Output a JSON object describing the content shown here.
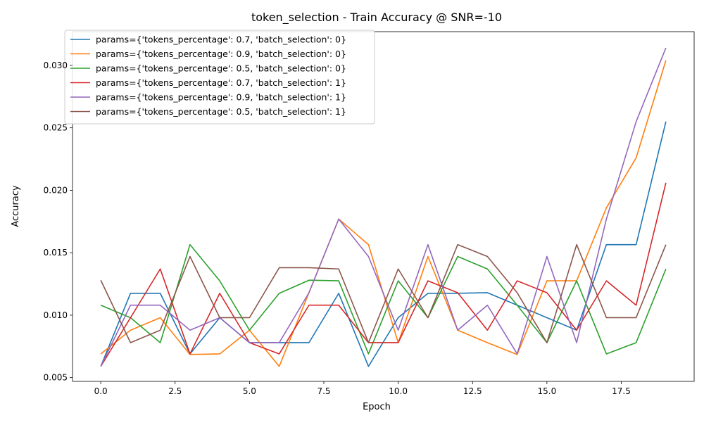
{
  "chart_data": {
    "type": "line",
    "title": "token_selection - Train Accuracy @ SNR=-10",
    "xlabel": "Epoch",
    "ylabel": "Accuracy",
    "xlim": [
      -0.95,
      19.95
    ],
    "ylim": [
      0.0047,
      0.0327
    ],
    "xticks": [
      0.0,
      2.5,
      5.0,
      7.5,
      10.0,
      12.5,
      15.0,
      17.5
    ],
    "xtick_labels": [
      "0.0",
      "2.5",
      "5.0",
      "7.5",
      "10.0",
      "12.5",
      "15.0",
      "17.5"
    ],
    "yticks": [
      0.005,
      0.01,
      0.015,
      0.02,
      0.025,
      0.03
    ],
    "ytick_labels": [
      "0.005",
      "0.010",
      "0.015",
      "0.020",
      "0.025",
      "0.030"
    ],
    "grid": false,
    "legend_position": "top-left",
    "x": [
      0,
      1,
      2,
      3,
      4,
      5,
      6,
      7,
      8,
      9,
      10,
      11,
      12,
      13,
      14,
      15,
      16,
      17,
      18,
      19
    ],
    "series": [
      {
        "name": "params={'tokens_percentage': 0.7, 'batch_selection': 0}",
        "color": "#1f77b4",
        "values": [
          0.0059,
          0.01175,
          0.01175,
          0.0069,
          0.0098,
          0.0078,
          0.0078,
          0.0078,
          0.01175,
          0.0059,
          0.0098,
          0.01175,
          0.01175,
          0.0118,
          0.0108,
          0.0098,
          0.0088,
          0.01565,
          0.01565,
          0.0255
        ]
      },
      {
        "name": "params={'tokens_percentage': 0.9, 'batch_selection': 0}",
        "color": "#ff7f0e",
        "values": [
          0.0069,
          0.0088,
          0.0098,
          0.00685,
          0.0069,
          0.0088,
          0.0059,
          0.0118,
          0.0177,
          0.01565,
          0.0078,
          0.0147,
          0.0088,
          0.0078,
          0.00685,
          0.01275,
          0.01275,
          0.0186,
          0.0226,
          0.0304
        ]
      },
      {
        "name": "params={'tokens_percentage': 0.5, 'batch_selection': 0}",
        "color": "#2ca02c",
        "values": [
          0.0108,
          0.0098,
          0.0078,
          0.01565,
          0.01275,
          0.0088,
          0.01175,
          0.0128,
          0.01275,
          0.0069,
          0.01275,
          0.0098,
          0.0147,
          0.0137,
          0.0108,
          0.0078,
          0.01275,
          0.0069,
          0.0078,
          0.0137
        ]
      },
      {
        "name": "params={'tokens_percentage': 0.7, 'batch_selection': 1}",
        "color": "#d62728",
        "values": [
          0.0059,
          0.0098,
          0.0137,
          0.0069,
          0.01175,
          0.0078,
          0.0069,
          0.0108,
          0.0108,
          0.0078,
          0.0078,
          0.01275,
          0.0118,
          0.0088,
          0.01275,
          0.0118,
          0.0088,
          0.01275,
          0.0108,
          0.0206
        ]
      },
      {
        "name": "params={'tokens_percentage': 0.9, 'batch_selection': 1}",
        "color": "#9467bd",
        "values": [
          0.0059,
          0.0108,
          0.0108,
          0.0088,
          0.0098,
          0.0078,
          0.0078,
          0.0118,
          0.0177,
          0.0147,
          0.0088,
          0.01565,
          0.0088,
          0.0108,
          0.0069,
          0.0147,
          0.0078,
          0.0177,
          0.0255,
          0.0314
        ]
      },
      {
        "name": "params={'tokens_percentage': 0.5, 'batch_selection': 1}",
        "color": "#8c564b",
        "values": [
          0.0128,
          0.0078,
          0.0088,
          0.0147,
          0.0098,
          0.0098,
          0.0138,
          0.0138,
          0.0137,
          0.0078,
          0.0137,
          0.0098,
          0.01565,
          0.0147,
          0.0118,
          0.0078,
          0.01565,
          0.0098,
          0.0098,
          0.01565
        ]
      }
    ]
  }
}
